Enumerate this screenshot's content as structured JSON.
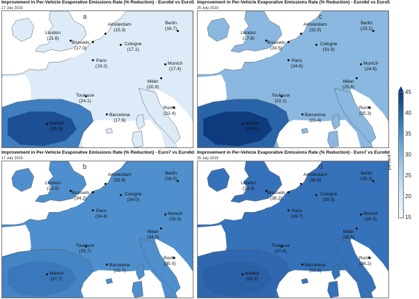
{
  "panels": {
    "a": {
      "title": "Improvement in Per-Vehicle Evaporative Emissions Rate (% Reduction) - Euro6d vs Euro5",
      "date": "17 July 2019",
      "letter": "a",
      "cities": {
        "london": {
          "name": "London",
          "value": "(21.6)"
        },
        "amsterdam": {
          "name": "Amsterdam",
          "value": "(15.3)"
        },
        "berlin": {
          "name": "Berlin",
          "value": "(16.7)"
        },
        "brussels": {
          "name": "Brussels",
          "value": "(17.0)"
        },
        "cologne": {
          "name": "Cologne",
          "value": "(17.1)"
        },
        "paris": {
          "name": "Paris",
          "value": "(19.2)"
        },
        "munich": {
          "name": "Munich",
          "value": "(17.4)"
        },
        "milan": {
          "name": "Milan",
          "value": "(20.9)"
        },
        "toulouse": {
          "name": "Toulouse",
          "value": "(24.1)"
        },
        "barcelona": {
          "name": "Barcelona",
          "value": "(17.9)"
        },
        "rome": {
          "name": "Rome",
          "value": "(22.4)"
        },
        "madrid": {
          "name": "Madrid",
          "value": "(38.5)"
        }
      }
    },
    "c": {
      "title": "Improvement in Per-Vehicle Evaporative Emissions Rate (% Reduction) - Euro6d vs Euro5",
      "date": "25 July 2019",
      "letter": "c",
      "cities": {
        "london": {
          "name": "London",
          "value": "(27.8)"
        },
        "amsterdam": {
          "name": "Amsterdam",
          "value": "(32.0)"
        },
        "berlin": {
          "name": "Berlin",
          "value": "(23.1)"
        },
        "brussels": {
          "name": "Brussels",
          "value": "(33.5)"
        },
        "cologne": {
          "name": "Cologne",
          "value": "(31.9)"
        },
        "paris": {
          "name": "Paris",
          "value": "(34.6)"
        },
        "munich": {
          "name": "Munich",
          "value": "(24.9)"
        },
        "milan": {
          "name": "Milan",
          "value": "(25.8)"
        },
        "toulouse": {
          "name": "Toulouse",
          "value": "(32.1)"
        },
        "barcelona": {
          "name": "Barcelona",
          "value": "(21.4)"
        },
        "rome": {
          "name": "Rome",
          "value": "(25.3)"
        },
        "madrid": {
          "name": "Madrid",
          "value": "(43.5)"
        }
      }
    },
    "b": {
      "title": "Improvement in Per-Vehicle Evaporative Emissions Rate (% Reduction) - Euro7 vs Euro6d",
      "date": "17 July 2019",
      "letter": "b",
      "cities": {
        "london": {
          "name": "London",
          "value": "(33.0)"
        },
        "amsterdam": {
          "name": "Amsterdam",
          "value": "(33.9)"
        },
        "berlin": {
          "name": "Berlin",
          "value": "(34.0)"
        },
        "brussels": {
          "name": "Brussels",
          "value": "(34.2)"
        },
        "cologne": {
          "name": "Cologne",
          "value": "(34.0)"
        },
        "paris": {
          "name": "Paris",
          "value": "(34.4)"
        },
        "munich": {
          "name": "Munich",
          "value": "(33.9)"
        },
        "milan": {
          "name": "Milan",
          "value": "(34.3)"
        },
        "toulouse": {
          "name": "Toulouse",
          "value": "(35.7)"
        },
        "barcelona": {
          "name": "Barcelona",
          "value": "(32.7)"
        },
        "rome": {
          "name": "Rome",
          "value": "(35.0)"
        },
        "madrid": {
          "name": "Madrid",
          "value": "(37.7)"
        }
      }
    },
    "d": {
      "title": "Improvement in Per-Vehicle Evaporative Emissions Rate (% Reduction) - Euro7 vs Euro6d",
      "date": "25 July 2019",
      "letter": "d",
      "cities": {
        "london": {
          "name": "London",
          "value": "(38.3)"
        },
        "amsterdam": {
          "name": "Amsterdam",
          "value": "(38.8)"
        },
        "berlin": {
          "name": "Berlin",
          "value": "(35.2)"
        },
        "brussels": {
          "name": "Brussels",
          "value": "(38.2)"
        },
        "cologne": {
          "name": "Cologne",
          "value": "(38.3)"
        },
        "paris": {
          "name": "Paris",
          "value": "(39.7)"
        },
        "munich": {
          "name": "Munich",
          "value": "(35.5)"
        },
        "milan": {
          "name": "Milan",
          "value": "(36.5)"
        },
        "toulouse": {
          "name": "Toulouse",
          "value": "(37.6)"
        },
        "barcelona": {
          "name": "Barcelona",
          "value": "(33.3)"
        },
        "rome": {
          "name": "Rome",
          "value": "(36.2)"
        },
        "madrid": {
          "name": "Madrid",
          "value": "(39.5)"
        }
      }
    }
  },
  "colorbar": {
    "label": "percent",
    "ticks": [
      "45",
      "40",
      "35",
      "30",
      "25",
      "20",
      "15"
    ],
    "min": 15,
    "max": 45,
    "colors": {
      "low": "#f4f9ff",
      "mid": "#6aa8d8",
      "high": "#0b3b7e"
    }
  },
  "map_fill": {
    "a": {
      "land": "#ddebf8",
      "iberia": "#3f7fbf",
      "iberia_core": "#1c4f94"
    },
    "c": {
      "land": "#8ab8e0",
      "iberia": "#2a64a8",
      "iberia_core": "#0d3b7d"
    },
    "b": {
      "land": "#4f8fcd",
      "iberia": "#4585c6",
      "iberia_core": "#3a78bb"
    },
    "d": {
      "land": "#3572b9",
      "iberia": "#2f68b0",
      "iberia_core": "#2a60a6"
    }
  }
}
